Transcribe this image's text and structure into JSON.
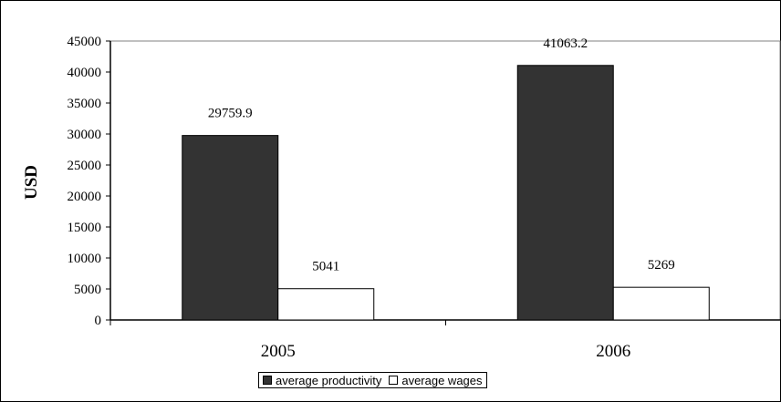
{
  "chart_data": {
    "type": "bar",
    "categories": [
      "2005",
      "2006"
    ],
    "series": [
      {
        "name": "average productivity",
        "values": [
          29759.9,
          41063.2
        ],
        "labels": [
          "29759.9",
          "41063.2"
        ],
        "color": "#333333"
      },
      {
        "name": "average wages",
        "values": [
          5041,
          5269
        ],
        "labels": [
          "5041",
          "5269"
        ],
        "color": "#ffffff"
      }
    ],
    "ylabel": "USD",
    "xlabel": "",
    "ylim": [
      0,
      45000
    ],
    "yticks": [
      "0",
      "5000",
      "10000",
      "15000",
      "20000",
      "25000",
      "30000",
      "35000",
      "40000",
      "45000"
    ],
    "grid": false,
    "legend_position": "bottom"
  }
}
